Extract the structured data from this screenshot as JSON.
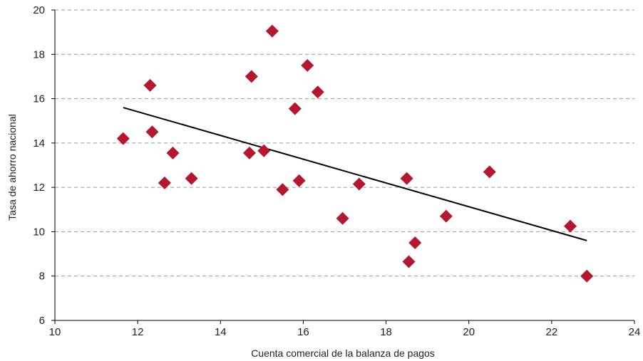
{
  "chart_data": {
    "type": "scatter",
    "title": "",
    "xlabel": "Cuenta comercial de la balanza de pagos",
    "ylabel": "Tasa de ahorro nacional",
    "xlim": [
      10,
      24
    ],
    "ylim": [
      6,
      20
    ],
    "x_ticks": [
      "10",
      "12",
      "14",
      "16",
      "18",
      "20",
      "22",
      "24"
    ],
    "y_ticks": [
      "6",
      "8",
      "10",
      "12",
      "14",
      "16",
      "18",
      "20"
    ],
    "grid": "horizontal-dashed",
    "legend": "none",
    "colors": {
      "points": "#b5172f",
      "trendline": "#000000",
      "grid": "#9a9a9a",
      "axis": "#000000"
    },
    "series": [
      {
        "marker": "diamond",
        "points": [
          {
            "x": 11.65,
            "y": 14.2
          },
          {
            "x": 12.3,
            "y": 16.6
          },
          {
            "x": 12.35,
            "y": 14.5
          },
          {
            "x": 12.65,
            "y": 12.2
          },
          {
            "x": 12.85,
            "y": 13.55
          },
          {
            "x": 13.3,
            "y": 12.4
          },
          {
            "x": 14.7,
            "y": 13.55
          },
          {
            "x": 14.75,
            "y": 17.0
          },
          {
            "x": 15.05,
            "y": 13.65
          },
          {
            "x": 15.25,
            "y": 19.05
          },
          {
            "x": 15.5,
            "y": 11.9
          },
          {
            "x": 15.8,
            "y": 15.55
          },
          {
            "x": 15.9,
            "y": 12.3
          },
          {
            "x": 16.1,
            "y": 17.5
          },
          {
            "x": 16.35,
            "y": 16.3
          },
          {
            "x": 16.95,
            "y": 10.6
          },
          {
            "x": 17.35,
            "y": 12.15
          },
          {
            "x": 18.5,
            "y": 12.4
          },
          {
            "x": 18.55,
            "y": 8.65
          },
          {
            "x": 18.7,
            "y": 9.5
          },
          {
            "x": 19.45,
            "y": 10.7
          },
          {
            "x": 20.5,
            "y": 12.7
          },
          {
            "x": 22.45,
            "y": 10.25
          },
          {
            "x": 22.85,
            "y": 8.0
          }
        ]
      }
    ],
    "trendline": {
      "x": [
        11.65,
        22.85
      ],
      "y": [
        15.6,
        9.6
      ]
    }
  }
}
